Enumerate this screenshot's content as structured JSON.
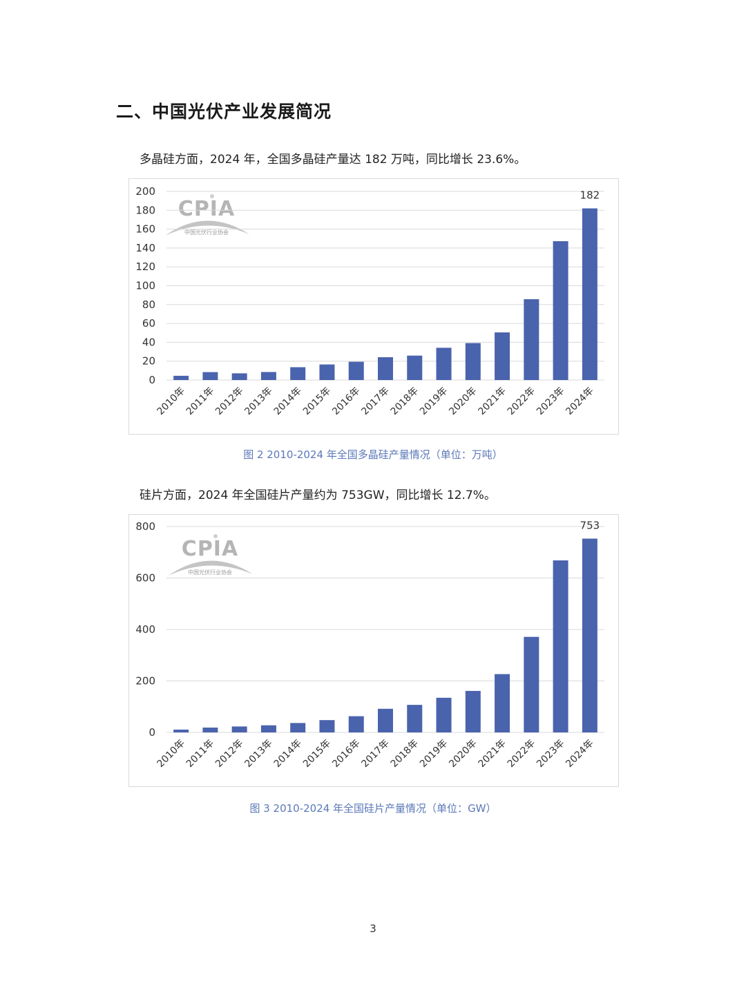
{
  "heading": "二、中国光伏产业发展简况",
  "paragraph1": "多晶硅方面，2024 年，全国多晶硅产量达 182 万吨，同比增长 23.6%。",
  "paragraph2": "硅片方面，2024 年全国硅片产量约为 753GW，同比增长 12.7%。",
  "logo": {
    "text": "CPIA",
    "subtitle": "中国光伏行业协会"
  },
  "colors": {
    "bar": "#4a63ad",
    "grid": "#d9d9d9",
    "caption": "#5b78b8"
  },
  "chart_data": [
    {
      "type": "bar",
      "caption": "图 2    2010-2024 年全国多晶硅产量情况（单位：万吨）",
      "categories": [
        "2010年",
        "2011年",
        "2012年",
        "2013年",
        "2014年",
        "2015年",
        "2016年",
        "2017年",
        "2018年",
        "2019年",
        "2020年",
        "2021年",
        "2022年",
        "2023年",
        "2024年"
      ],
      "values": [
        4.5,
        8.4,
        7.1,
        8.5,
        13.6,
        16.5,
        19.4,
        24.2,
        25.9,
        34.2,
        39.2,
        50.5,
        85.7,
        147.2,
        182
      ],
      "data_labels": [
        null,
        null,
        null,
        null,
        null,
        null,
        null,
        null,
        null,
        null,
        null,
        null,
        null,
        null,
        "182"
      ],
      "yticks": [
        "0",
        "20",
        "40",
        "60",
        "80",
        "100",
        "120",
        "140",
        "160",
        "180",
        "200"
      ],
      "ylim": [
        0,
        200
      ],
      "grid": true
    },
    {
      "type": "bar",
      "caption": "图 3    2010-2024 年全国硅片产量情况（单位：GW）",
      "categories": [
        "2010年",
        "2011年",
        "2012年",
        "2013年",
        "2014年",
        "2015年",
        "2016年",
        "2017年",
        "2018年",
        "2019年",
        "2020年",
        "2021年",
        "2022年",
        "2023年",
        "2024年"
      ],
      "values": [
        11,
        18.9,
        23.1,
        27.7,
        36.6,
        47.9,
        63,
        91.8,
        107.1,
        134.7,
        161.3,
        226.6,
        371.3,
        668.4,
        753
      ],
      "data_labels": [
        null,
        null,
        null,
        null,
        null,
        null,
        null,
        null,
        null,
        null,
        null,
        null,
        null,
        null,
        "753"
      ],
      "yticks": [
        "0",
        "200",
        "400",
        "600",
        "800"
      ],
      "ylim": [
        0,
        800
      ],
      "grid": true
    }
  ],
  "page_number": "3"
}
